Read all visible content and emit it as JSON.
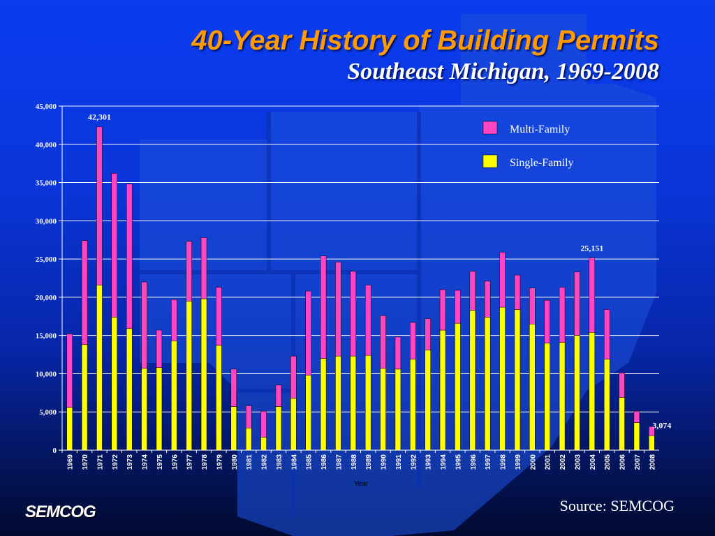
{
  "header": {
    "title": "40-Year History of Building Permits",
    "subtitle": "Southeast Michigan, 1969-2008"
  },
  "footer": {
    "logo": "SEMCOG",
    "source": "Source: SEMCOG"
  },
  "colors": {
    "multi_family": "#ff44c4",
    "single_family": "#ffff00",
    "gridline": "#ffffff",
    "text": "#ffffff",
    "title": "#ff9a00"
  },
  "chart_data": {
    "type": "bar",
    "stacked": true,
    "xlabel": "Year",
    "ylabel": "",
    "ylim": [
      0,
      45000
    ],
    "yticks": [
      0,
      5000,
      10000,
      15000,
      20000,
      25000,
      30000,
      35000,
      40000,
      45000
    ],
    "ytick_labels": [
      "0",
      "5,000",
      "10,000",
      "15,000",
      "20,000",
      "25,000",
      "30,000",
      "35,000",
      "40,000",
      "45,000"
    ],
    "grid": true,
    "legend_position": "top-right",
    "categories": [
      "1969",
      "1970",
      "1971",
      "1972",
      "1973",
      "1974",
      "1975",
      "1976",
      "1977",
      "1978",
      "1979",
      "1980",
      "1981",
      "1982",
      "1983",
      "1984",
      "1985",
      "1986",
      "1987",
      "1988",
      "1989",
      "1990",
      "1991",
      "1992",
      "1993",
      "1994",
      "1995",
      "1996",
      "1997",
      "1998",
      "1999",
      "2000",
      "2001",
      "2002",
      "2003",
      "2004",
      "2005",
      "2006",
      "2007",
      "2008"
    ],
    "series": [
      {
        "name": "Single-Family",
        "values": [
          5600,
          13800,
          21600,
          17400,
          15900,
          10700,
          10800,
          14300,
          19500,
          19800,
          13700,
          5700,
          2900,
          1700,
          5700,
          6800,
          9800,
          12000,
          12300,
          12300,
          12400,
          10700,
          10600,
          11900,
          13100,
          15700,
          16600,
          18300,
          17400,
          18700,
          18400,
          16500,
          14000,
          14100,
          15000,
          15400,
          11900,
          6900,
          3600,
          1900
        ]
      },
      {
        "name": "Multi-Family",
        "values": [
          9600,
          13600,
          20701,
          18800,
          18900,
          11300,
          4900,
          5400,
          7800,
          8000,
          7600,
          4900,
          2900,
          3400,
          2800,
          5500,
          11000,
          13400,
          12300,
          11100,
          9200,
          6900,
          4200,
          4800,
          4100,
          5300,
          4300,
          5100,
          4700,
          7200,
          4500,
          4700,
          5600,
          7200,
          8300,
          9751,
          6500,
          3200,
          1500,
          1174
        ]
      }
    ],
    "annotations": [
      {
        "label": "42,301",
        "category": "1971"
      },
      {
        "label": "25,151",
        "category": "2004"
      },
      {
        "label": "3,074",
        "category": "2008"
      }
    ]
  }
}
